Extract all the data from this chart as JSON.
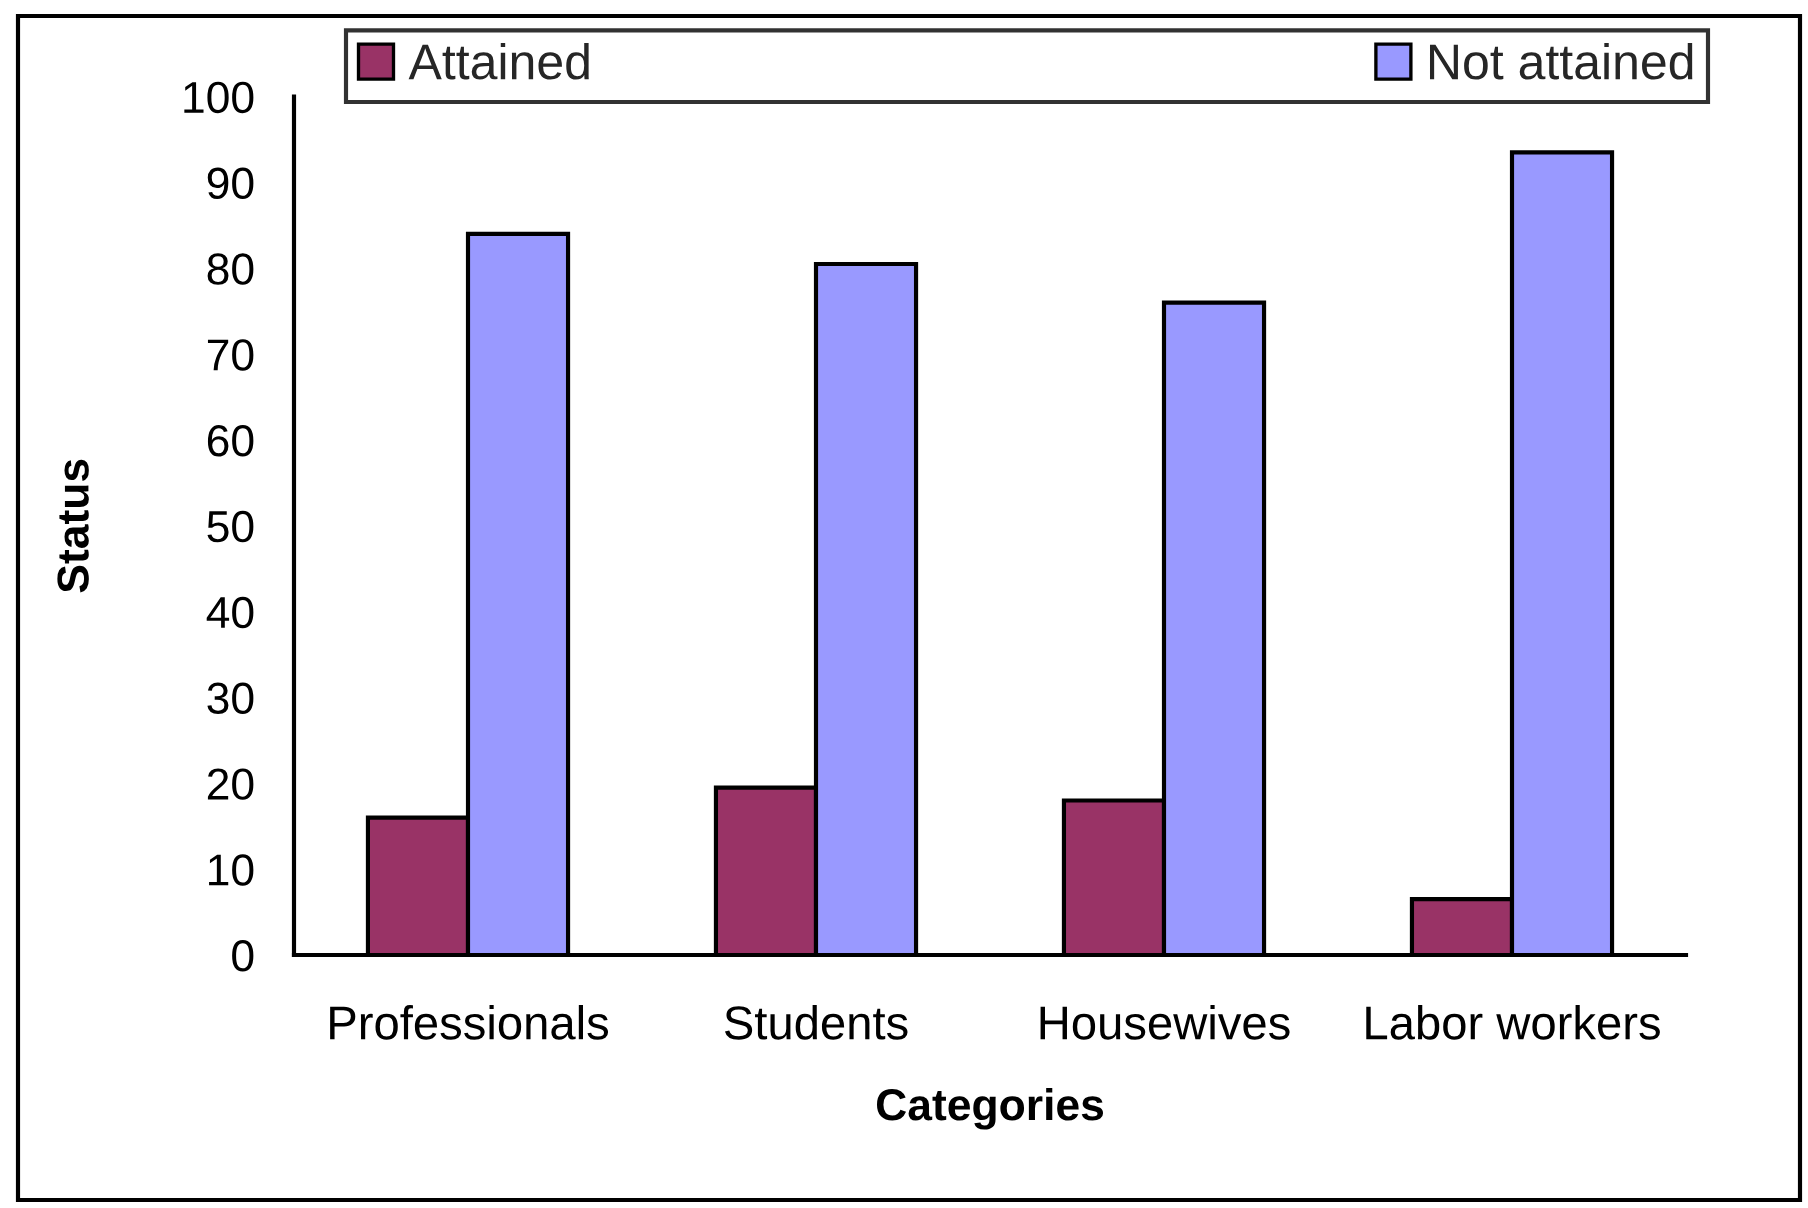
{
  "chart_data": {
    "type": "bar",
    "xlabel": "Categories",
    "ylabel": "Status",
    "categories": [
      "Professionals",
      "Students",
      "Housewives",
      "Labor workers"
    ],
    "series": [
      {
        "name": "Attained",
        "color": "#993366",
        "values": [
          16,
          19.5,
          18,
          6.5
        ]
      },
      {
        "name": "Not attained",
        "color": "#9999ff",
        "values": [
          84,
          80.5,
          76,
          93.5
        ]
      }
    ],
    "ylim": [
      0,
      100
    ],
    "yticks": [
      0,
      10,
      20,
      30,
      40,
      50,
      60,
      70,
      80,
      90,
      100
    ],
    "grid": false,
    "legend": "top"
  }
}
